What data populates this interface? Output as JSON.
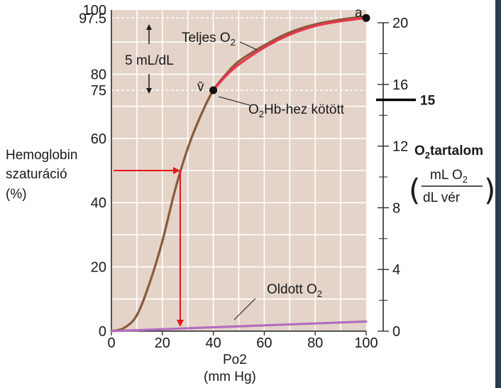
{
  "chart_data": {
    "type": "line",
    "xlabel": "Po2",
    "xlabel_unit": "(mm Hg)",
    "ylabel_left": [
      "Hemoglobin",
      "szaturáció",
      "(%)"
    ],
    "ylabel_right_title": "tartalom",
    "ylabel_right_unit_top": "mL O",
    "ylabel_right_unit_bottom": "dL   vér",
    "xlim": [
      0,
      100
    ],
    "ylim_left": [
      0,
      100
    ],
    "ylim_right": [
      0,
      20
    ],
    "x_ticks": [
      0,
      20,
      40,
      60,
      80,
      100
    ],
    "y_left_ticks": [
      "0",
      "20",
      "40",
      "60",
      "75",
      "80",
      "97.5",
      "100"
    ],
    "y_right_ticks": [
      "0",
      "4",
      "8",
      "12",
      "16",
      "20"
    ],
    "extra_right_tick": "15",
    "grid": true,
    "series": [
      {
        "name": "Teljes O",
        "color": "#8a5a3c",
        "points": [
          [
            0,
            0
          ],
          [
            5,
            1
          ],
          [
            10,
            5
          ],
          [
            15,
            15
          ],
          [
            20,
            28
          ],
          [
            25,
            44
          ],
          [
            30,
            57
          ],
          [
            35,
            67
          ],
          [
            40,
            75
          ],
          [
            45,
            80
          ],
          [
            50,
            84
          ],
          [
            60,
            89
          ],
          [
            70,
            93
          ],
          [
            80,
            95.5
          ],
          [
            90,
            97
          ],
          [
            100,
            98
          ]
        ]
      },
      {
        "name": "Hb-hez kötött",
        "color": "#e8364f",
        "points": [
          [
            40,
            75
          ],
          [
            45,
            79.5
          ],
          [
            50,
            83
          ],
          [
            60,
            88.3
          ],
          [
            70,
            92.3
          ],
          [
            80,
            95
          ],
          [
            90,
            96.5
          ],
          [
            100,
            97.5
          ]
        ]
      },
      {
        "name": "Oldott",
        "color": "#b26cc0",
        "points": [
          [
            0,
            0
          ],
          [
            100,
            3
          ]
        ]
      }
    ],
    "points": [
      {
        "label": "a",
        "x": 100,
        "y": 97.5
      },
      {
        "label": "v̄",
        "x": 40,
        "y": 75
      }
    ],
    "annotations": {
      "delta": "5 mL/dL",
      "total_o2": "Teljes O",
      "hb_bound": "Hb-hez kötött",
      "dissolved": "Oldott   O",
      "o2_subscript": "2",
      "point_a": "a",
      "point_v": "v̄"
    },
    "red_lookup": {
      "y_start": 50,
      "x_value": 27
    }
  }
}
